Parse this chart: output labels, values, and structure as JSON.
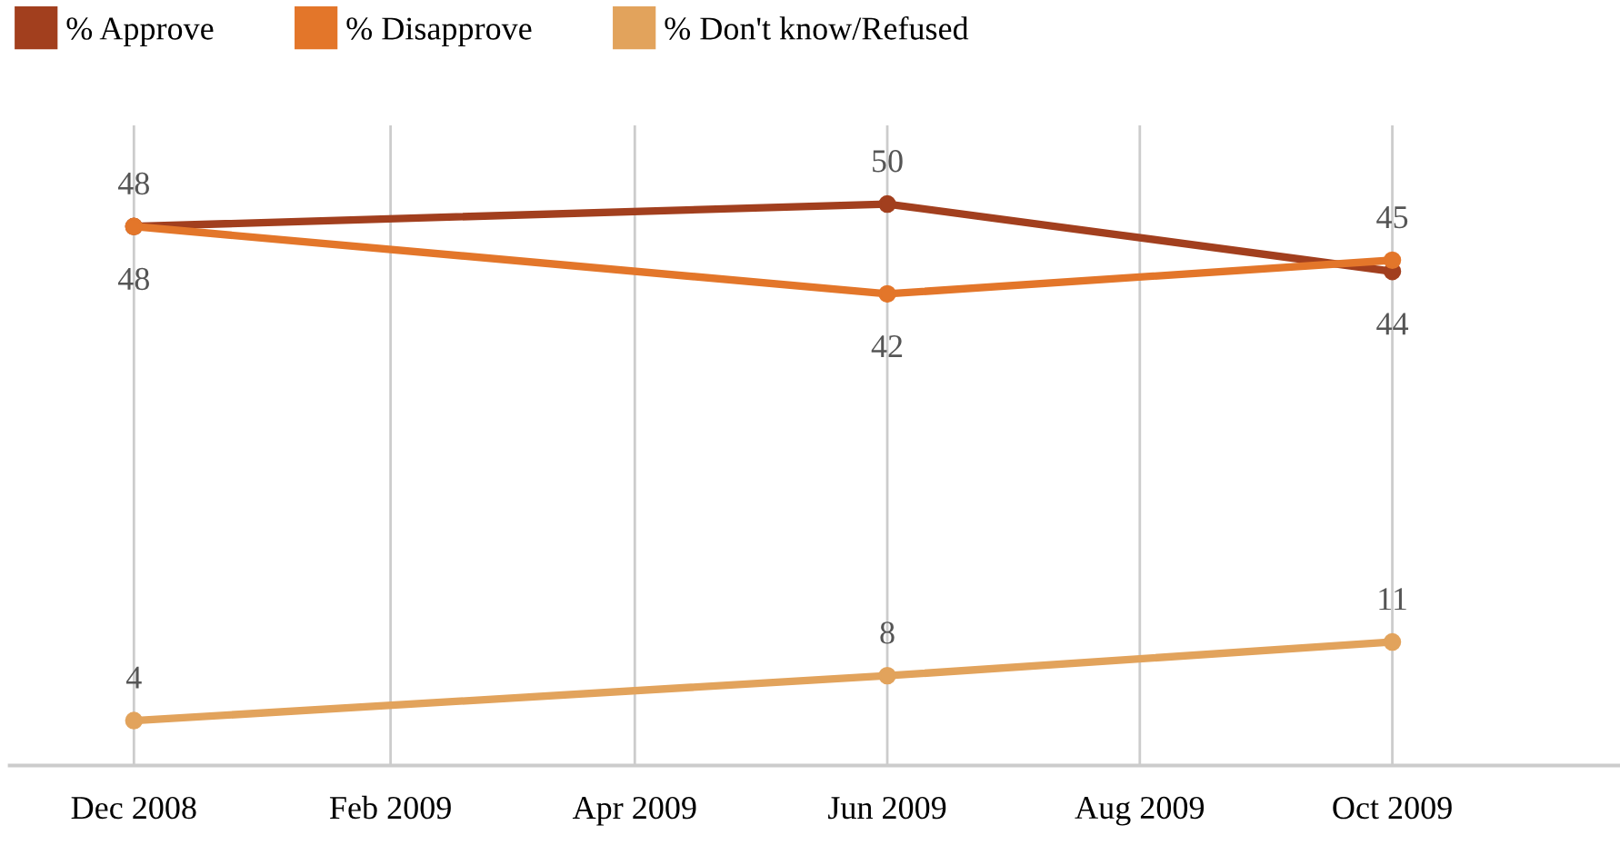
{
  "chart_data": {
    "type": "line",
    "x": [
      "2008-12",
      "2009-06",
      "2009-10"
    ],
    "series": [
      {
        "name": "% Approve",
        "color": "#a23f1e",
        "values": [
          48,
          50,
          44
        ]
      },
      {
        "name": "% Disapprove",
        "color": "#e3762a",
        "values": [
          48,
          42,
          45
        ]
      },
      {
        "name": "% Don't know/Refused",
        "color": "#e2a35c",
        "values": [
          4,
          8,
          11
        ]
      }
    ],
    "xlim": [
      "2008-11-01",
      "2009-11-25"
    ],
    "xticks": [
      {
        "value": "2008-12",
        "label": "Dec 2008"
      },
      {
        "value": "2009-02",
        "label": "Feb 2009"
      },
      {
        "value": "2009-04",
        "label": "Apr 2009"
      },
      {
        "value": "2009-06",
        "label": "Jun 2009"
      },
      {
        "value": "2009-08",
        "label": "Aug 2009"
      },
      {
        "value": "2009-10",
        "label": "Oct 2009"
      }
    ],
    "ylim": [
      0,
      57
    ],
    "tick_labels": "x",
    "grid": "x",
    "legend": "top left",
    "marker": "circle",
    "line_style": "solid",
    "data_labels": true
  }
}
